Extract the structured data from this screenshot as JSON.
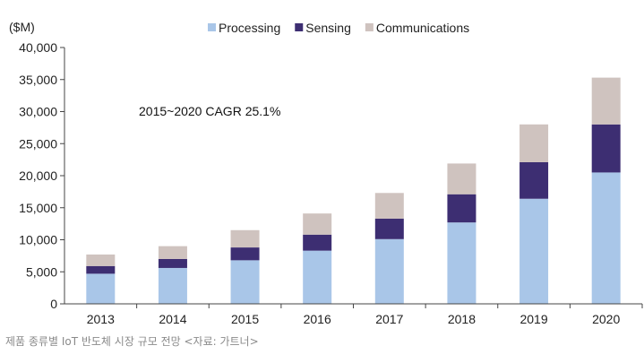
{
  "chart_data": {
    "type": "bar",
    "stacked": true,
    "unit_label": "($M)",
    "categories": [
      "2013",
      "2014",
      "2015",
      "2016",
      "2017",
      "2018",
      "2019",
      "2020"
    ],
    "series": [
      {
        "name": "Processing",
        "color": "#a9c6e8",
        "values": [
          4700,
          5600,
          6800,
          8300,
          10100,
          12700,
          16400,
          20500
        ]
      },
      {
        "name": "Sensing",
        "color": "#3d2e72",
        "values": [
          1200,
          1400,
          2000,
          2500,
          3200,
          4400,
          5700,
          7500
        ]
      },
      {
        "name": "Communications",
        "color": "#cfc3bf",
        "values": [
          1800,
          2000,
          2700,
          3300,
          4000,
          4800,
          5900,
          7300
        ]
      }
    ],
    "ylim": [
      0,
      40000
    ],
    "yticks": [
      "0",
      "5,000",
      "10,000",
      "15,000",
      "20,000",
      "25,000",
      "30,000",
      "35,000",
      "40,000"
    ],
    "ytick_values": [
      0,
      5000,
      10000,
      15000,
      20000,
      25000,
      30000,
      35000,
      40000
    ],
    "annotation": "2015~2020 CAGR 25.1%",
    "legend_position": "top",
    "grid": false
  },
  "caption": "제품 종류별 IoT 반도체 시장 규모 전망 <자료: 가트너>"
}
